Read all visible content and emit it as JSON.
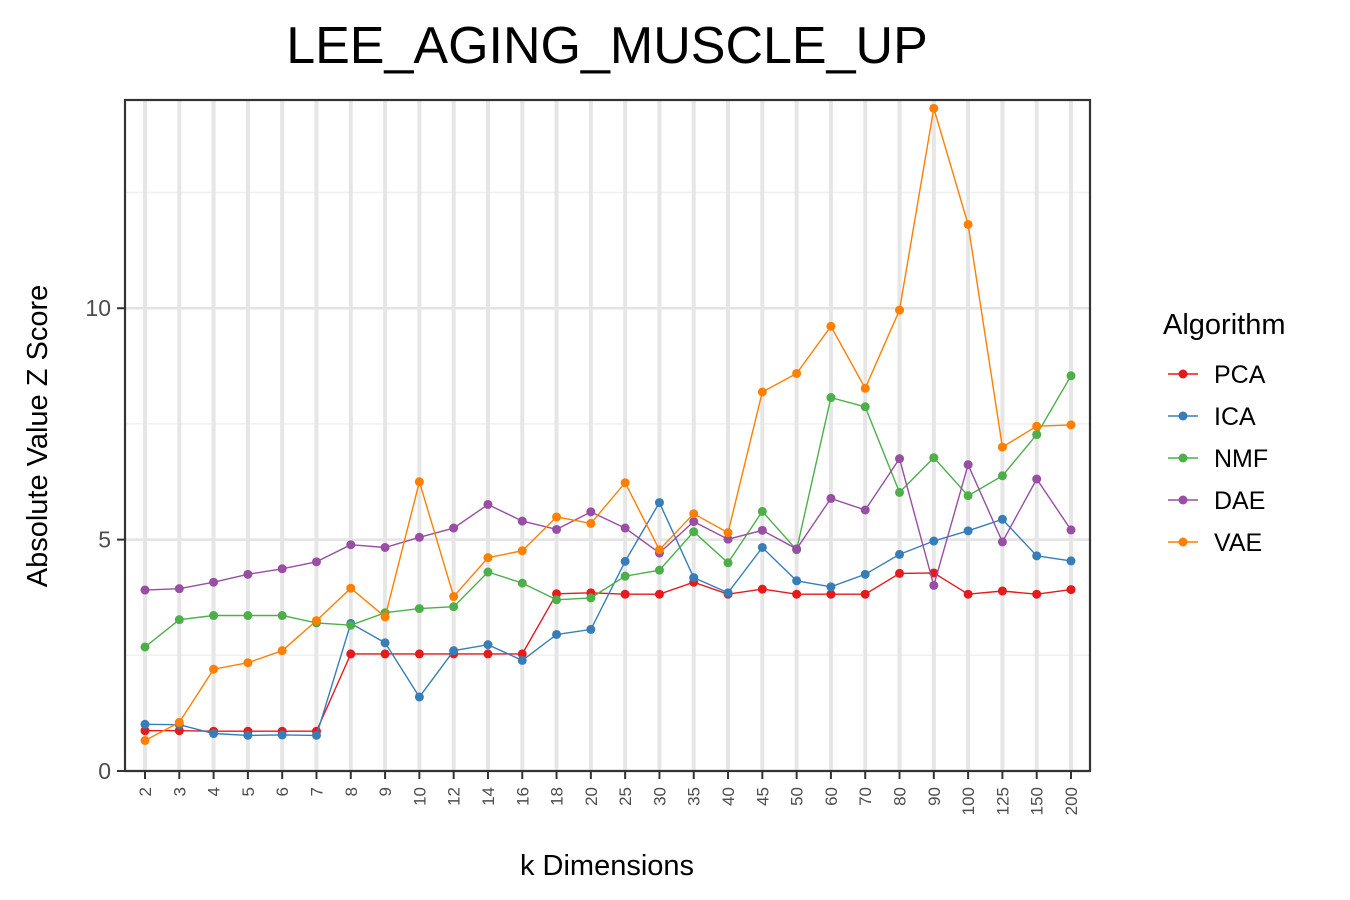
{
  "chart_data": {
    "type": "line",
    "title": "LEE_AGING_MUSCLE_UP",
    "xlabel": "k Dimensions",
    "ylabel": "Absolute Value Z Score",
    "categories": [
      "2",
      "3",
      "4",
      "5",
      "6",
      "7",
      "8",
      "9",
      "10",
      "12",
      "14",
      "16",
      "18",
      "20",
      "25",
      "30",
      "35",
      "40",
      "45",
      "50",
      "60",
      "70",
      "80",
      "90",
      "100",
      "125",
      "150",
      "200"
    ],
    "ylim": [
      0,
      14.5
    ],
    "yticks": [
      0,
      5,
      10
    ],
    "grid": true,
    "legend": {
      "title": "Algorithm",
      "position": "right"
    },
    "series": [
      {
        "name": "PCA",
        "color": "#e41a1c",
        "values": [
          0.87,
          0.87,
          0.86,
          0.86,
          0.86,
          0.86,
          2.53,
          2.53,
          2.53,
          2.53,
          2.53,
          2.53,
          3.83,
          3.85,
          3.82,
          3.82,
          4.08,
          3.82,
          3.93,
          3.82,
          3.82,
          3.82,
          4.27,
          4.28,
          3.82,
          3.89,
          3.82,
          3.92
        ]
      },
      {
        "name": "ICA",
        "color": "#377eb8",
        "values": [
          1.01,
          1.0,
          0.81,
          0.77,
          0.78,
          0.77,
          3.19,
          2.77,
          1.6,
          2.6,
          2.73,
          2.39,
          2.95,
          3.06,
          4.53,
          5.8,
          4.18,
          3.85,
          4.83,
          4.11,
          3.98,
          4.25,
          4.68,
          4.97,
          5.19,
          5.44,
          4.65,
          4.54
        ]
      },
      {
        "name": "NMF",
        "color": "#4daf4a",
        "values": [
          2.68,
          3.27,
          3.36,
          3.36,
          3.36,
          3.2,
          3.15,
          3.42,
          3.51,
          3.55,
          4.3,
          4.06,
          3.7,
          3.74,
          4.21,
          4.34,
          5.17,
          4.5,
          5.61,
          4.78,
          8.07,
          7.87,
          6.02,
          6.77,
          5.95,
          6.38,
          7.27,
          8.54
        ]
      },
      {
        "name": "DAE",
        "color": "#984ea3",
        "values": [
          3.91,
          3.94,
          4.08,
          4.25,
          4.37,
          4.52,
          4.89,
          4.83,
          5.05,
          5.25,
          5.76,
          5.4,
          5.22,
          5.6,
          5.25,
          4.71,
          5.39,
          5.01,
          5.2,
          4.8,
          5.89,
          5.64,
          6.75,
          4.01,
          6.62,
          4.95,
          6.31,
          5.21
        ]
      },
      {
        "name": "VAE",
        "color": "#ff7f00",
        "values": [
          0.66,
          1.05,
          2.2,
          2.34,
          2.6,
          3.25,
          3.95,
          3.33,
          6.25,
          3.77,
          4.61,
          4.76,
          5.49,
          5.35,
          6.23,
          4.78,
          5.56,
          5.15,
          8.19,
          8.59,
          9.61,
          8.27,
          9.96,
          14.32,
          11.81,
          7.0,
          7.45,
          7.48
        ]
      }
    ]
  }
}
